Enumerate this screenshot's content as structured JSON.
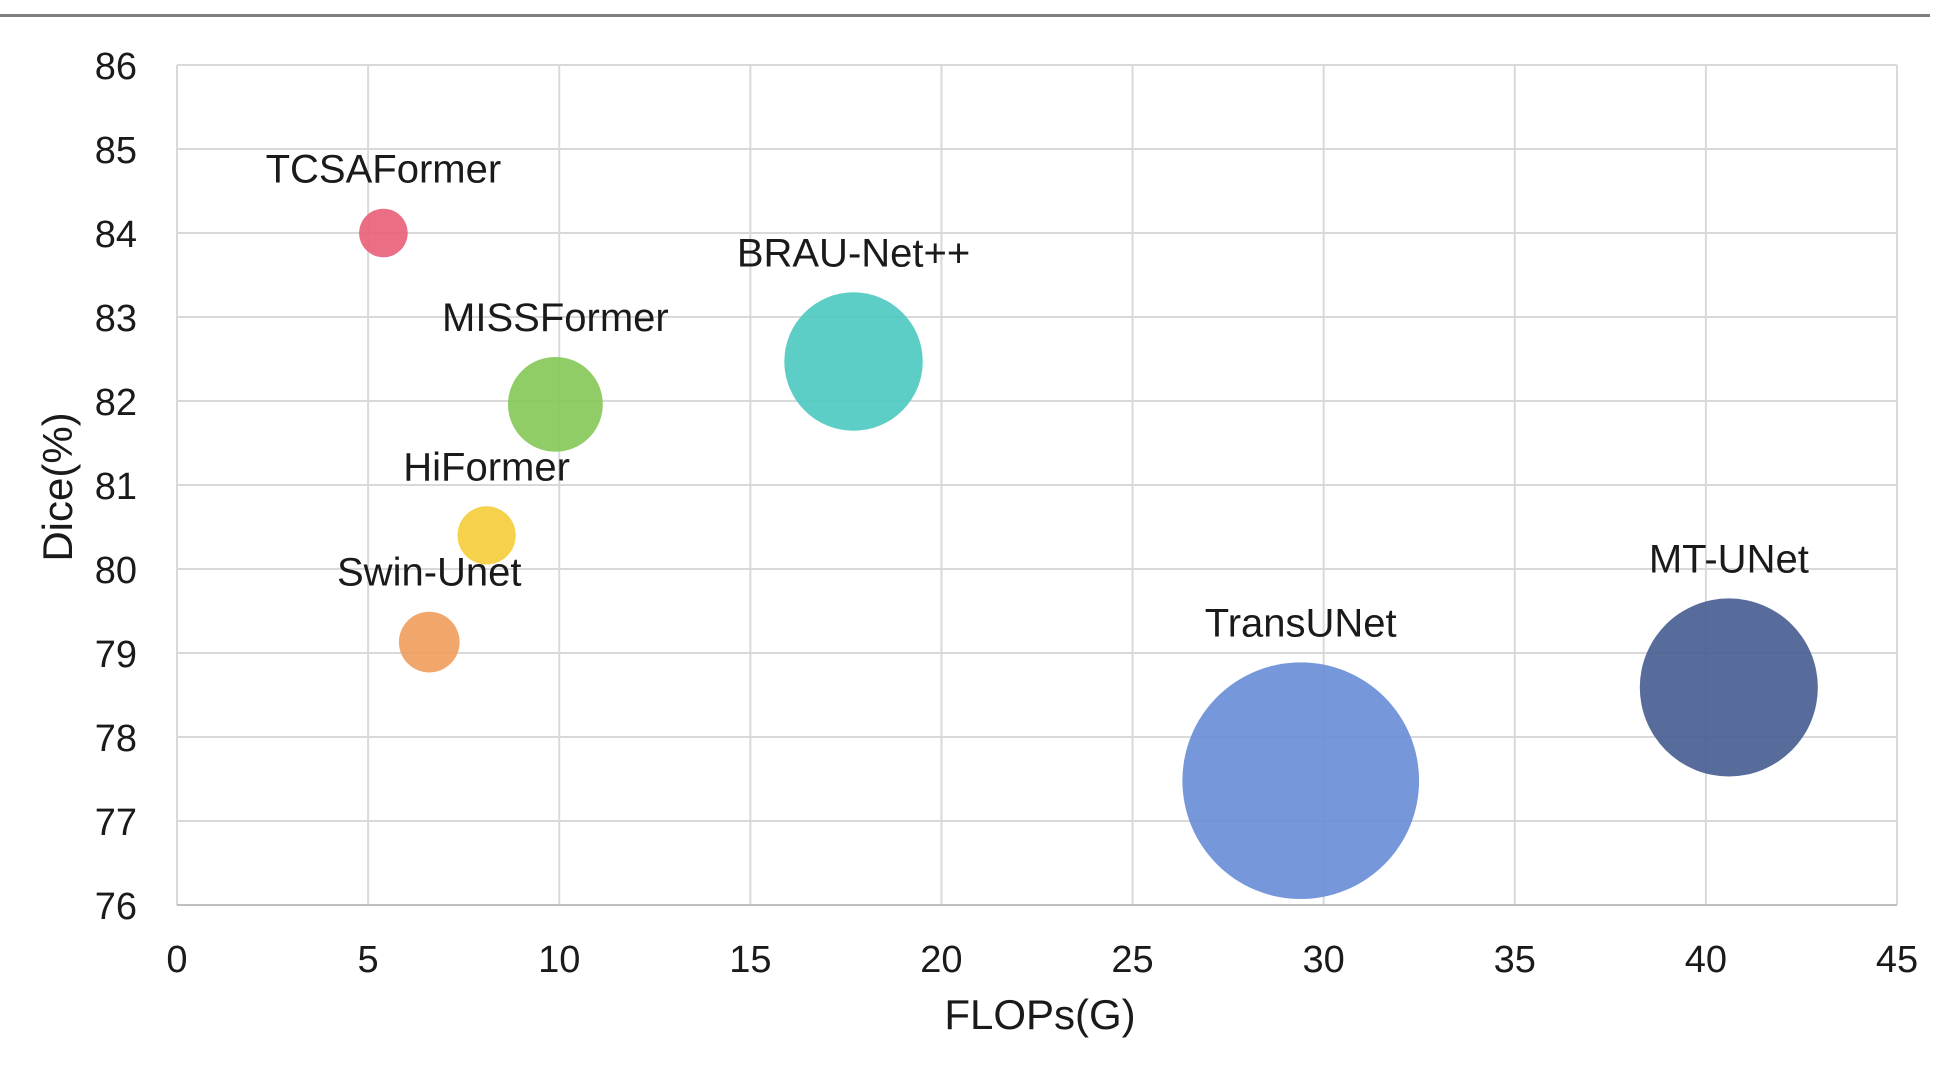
{
  "chart_data": {
    "type": "scatter",
    "title": "",
    "xlabel": "FLOPs(G)",
    "ylabel": "Dice(%)",
    "xlim": [
      0,
      45
    ],
    "ylim": [
      76,
      86
    ],
    "xticks": [
      0,
      5,
      10,
      15,
      20,
      25,
      30,
      35,
      40,
      45
    ],
    "yticks": [
      76,
      77,
      78,
      79,
      80,
      81,
      82,
      83,
      84,
      85,
      86
    ],
    "grid": true,
    "legend": "none",
    "series": [
      {
        "name": "TCSAFormer",
        "x": 5.4,
        "y": 84.0,
        "size": 1.6,
        "color": "#e8627a"
      },
      {
        "name": "Swin-Unet",
        "x": 6.6,
        "y": 79.13,
        "size": 2.5,
        "color": "#f0a05e"
      },
      {
        "name": "HiFormer",
        "x": 8.1,
        "y": 80.4,
        "size": 2.3,
        "color": "#f5cd3c"
      },
      {
        "name": "MISSFormer",
        "x": 9.9,
        "y": 81.96,
        "size": 6.1,
        "color": "#88c95a"
      },
      {
        "name": "BRAU-Net++",
        "x": 17.7,
        "y": 82.47,
        "size": 13.0,
        "color": "#4ecac0"
      },
      {
        "name": "TransUNet",
        "x": 29.4,
        "y": 77.48,
        "size": 38.0,
        "color": "#6a8fd8"
      },
      {
        "name": "MT-UNet",
        "x": 40.6,
        "y": 78.59,
        "size": 21.5,
        "color": "#4a5f94"
      }
    ]
  }
}
